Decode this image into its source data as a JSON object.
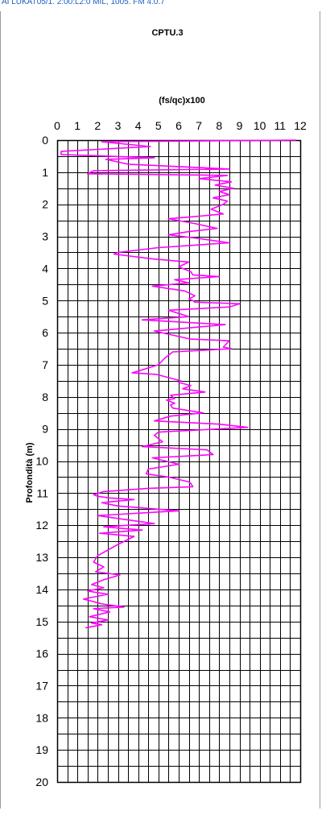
{
  "header_text": "AI LUKAT05/1. 2:00:L2:0 MIL, 1005. FM 4.0.7",
  "chart_data": {
    "type": "line",
    "title": "CPTU.3",
    "xlabel": "(fs/qc)x100",
    "ylabel": "Profondità (m)",
    "x_ticks": [
      0,
      1,
      2,
      3,
      4,
      5,
      6,
      7,
      8,
      9,
      10,
      11,
      12
    ],
    "y_ticks": [
      0,
      1,
      2,
      3,
      4,
      5,
      6,
      7,
      8,
      9,
      10,
      11,
      12,
      13,
      14,
      15,
      16,
      17,
      18,
      19,
      20
    ],
    "xlim": [
      0,
      12
    ],
    "ylim": [
      0,
      20
    ],
    "y_inverted": true,
    "grid": true,
    "line_color": "#ff00ff",
    "series": [
      {
        "points": [
          [
            11.8,
            0.0
          ],
          [
            2.2,
            0.05
          ],
          [
            4.6,
            0.2
          ],
          [
            0.2,
            0.35
          ],
          [
            0.2,
            0.45
          ],
          [
            2.5,
            0.5
          ],
          [
            4.8,
            0.55
          ],
          [
            2.4,
            0.6
          ],
          [
            3.5,
            0.75
          ],
          [
            8.5,
            0.9
          ],
          [
            1.8,
            0.95
          ],
          [
            1.5,
            1.05
          ],
          [
            8.4,
            1.1
          ],
          [
            7.0,
            1.2
          ],
          [
            8.6,
            1.3
          ],
          [
            7.8,
            1.4
          ],
          [
            8.7,
            1.5
          ],
          [
            8.0,
            1.6
          ],
          [
            8.5,
            1.7
          ],
          [
            7.7,
            1.8
          ],
          [
            8.4,
            1.9
          ],
          [
            8.2,
            2.0
          ],
          [
            7.6,
            2.15
          ],
          [
            8.2,
            2.3
          ],
          [
            6.5,
            2.4
          ],
          [
            5.5,
            2.45
          ],
          [
            6.8,
            2.6
          ],
          [
            7.9,
            2.75
          ],
          [
            6.5,
            2.85
          ],
          [
            5.5,
            2.95
          ],
          [
            6.8,
            3.05
          ],
          [
            8.5,
            3.2
          ],
          [
            5.0,
            3.35
          ],
          [
            3.0,
            3.5
          ],
          [
            2.8,
            3.55
          ],
          [
            4.7,
            3.7
          ],
          [
            6.5,
            3.8
          ],
          [
            6.0,
            3.95
          ],
          [
            6.2,
            4.0
          ],
          [
            6.6,
            4.1
          ],
          [
            6.7,
            4.2
          ],
          [
            8.0,
            4.25
          ],
          [
            5.8,
            4.35
          ],
          [
            6.5,
            4.45
          ],
          [
            4.7,
            4.55
          ],
          [
            6.3,
            4.7
          ],
          [
            6.8,
            4.85
          ],
          [
            6.5,
            4.95
          ],
          [
            6.7,
            5.0
          ],
          [
            6.8,
            5.05
          ],
          [
            9.0,
            5.1
          ],
          [
            8.5,
            5.2
          ],
          [
            5.5,
            5.3
          ],
          [
            6.5,
            5.5
          ],
          [
            4.2,
            5.6
          ],
          [
            8.3,
            5.75
          ],
          [
            4.8,
            5.95
          ],
          [
            6.6,
            6.2
          ],
          [
            8.5,
            6.25
          ],
          [
            8.2,
            6.45
          ],
          [
            8.6,
            6.5
          ],
          [
            5.7,
            6.6
          ],
          [
            5.3,
            6.8
          ],
          [
            5.0,
            7.0
          ],
          [
            4.0,
            7.2
          ],
          [
            3.7,
            7.25
          ],
          [
            4.9,
            7.3
          ],
          [
            5.5,
            7.4
          ],
          [
            6.1,
            7.5
          ],
          [
            6.0,
            7.55
          ],
          [
            6.6,
            7.65
          ],
          [
            6.2,
            7.75
          ],
          [
            7.3,
            7.85
          ],
          [
            5.6,
            7.95
          ],
          [
            5.8,
            8.05
          ],
          [
            5.4,
            8.1
          ],
          [
            5.8,
            8.2
          ],
          [
            5.6,
            8.25
          ],
          [
            5.7,
            8.35
          ],
          [
            7.2,
            8.5
          ],
          [
            5.6,
            8.6
          ],
          [
            4.8,
            8.75
          ],
          [
            8.0,
            8.85
          ],
          [
            9.4,
            8.95
          ],
          [
            5.0,
            9.1
          ],
          [
            4.8,
            9.2
          ],
          [
            5.2,
            9.4
          ],
          [
            4.2,
            9.55
          ],
          [
            7.4,
            9.65
          ],
          [
            7.7,
            9.8
          ],
          [
            4.7,
            9.9
          ],
          [
            6.0,
            10.1
          ],
          [
            4.5,
            10.25
          ],
          [
            4.4,
            10.4
          ],
          [
            5.5,
            10.5
          ],
          [
            6.5,
            10.65
          ],
          [
            6.6,
            10.7
          ],
          [
            6.7,
            10.8
          ],
          [
            4.5,
            10.85
          ],
          [
            2.3,
            10.95
          ],
          [
            1.8,
            11.05
          ],
          [
            2.0,
            11.1
          ],
          [
            2.6,
            11.15
          ],
          [
            3.8,
            11.2
          ],
          [
            2.2,
            11.3
          ],
          [
            3.0,
            11.4
          ],
          [
            6.0,
            11.55
          ],
          [
            2.0,
            11.7
          ],
          [
            4.8,
            11.95
          ],
          [
            2.3,
            12.05
          ],
          [
            4.2,
            12.15
          ],
          [
            2.1,
            12.25
          ],
          [
            3.8,
            12.35
          ],
          [
            3.0,
            12.6
          ],
          [
            2.0,
            12.95
          ],
          [
            1.8,
            13.15
          ],
          [
            2.3,
            13.3
          ],
          [
            1.9,
            13.45
          ],
          [
            3.1,
            13.55
          ],
          [
            2.3,
            13.7
          ],
          [
            1.7,
            13.85
          ],
          [
            2.3,
            13.95
          ],
          [
            1.5,
            14.05
          ],
          [
            2.5,
            14.15
          ],
          [
            1.3,
            14.3
          ],
          [
            2.2,
            14.45
          ],
          [
            3.3,
            14.55
          ],
          [
            1.8,
            14.6
          ],
          [
            2.6,
            14.7
          ],
          [
            1.6,
            14.85
          ],
          [
            2.5,
            14.95
          ],
          [
            1.7,
            15.05
          ],
          [
            2.2,
            15.1
          ],
          [
            1.4,
            15.2
          ]
        ]
      }
    ]
  }
}
